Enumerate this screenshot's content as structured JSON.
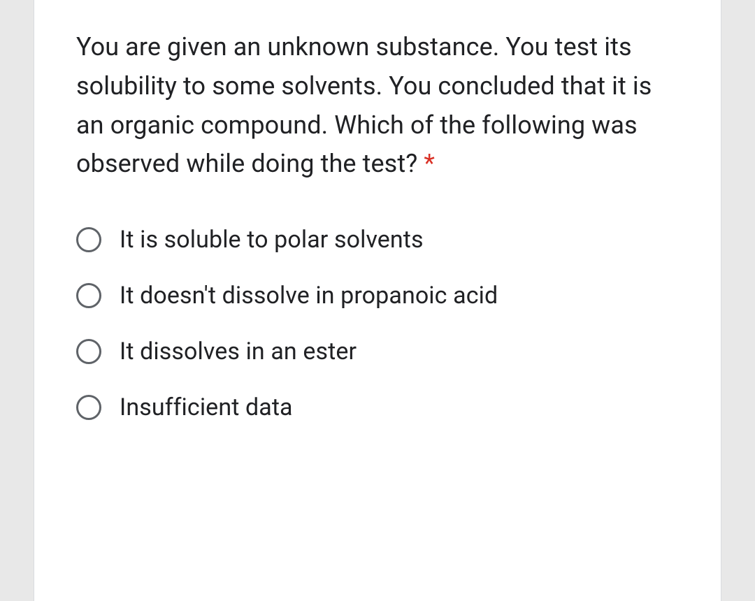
{
  "question": {
    "text": "You are given an unknown substance. You test its solubility to some solvents. You concluded that it is an organic compound. Which of the following was observed while doing the test? ",
    "required_marker": "*",
    "text_color": "#202124",
    "required_color": "#d93025",
    "fontsize": 36
  },
  "options": [
    {
      "label": "It is soluble to polar solvents"
    },
    {
      "label": "It doesn't dissolve in propanoic acid"
    },
    {
      "label": "It dissolves in an ester"
    },
    {
      "label": "Insufficient data"
    }
  ],
  "styling": {
    "background_color": "#e8e8e8",
    "card_background": "#ffffff",
    "radio_border_color": "#5f6368",
    "option_text_color": "#202124",
    "option_fontsize": 34
  }
}
